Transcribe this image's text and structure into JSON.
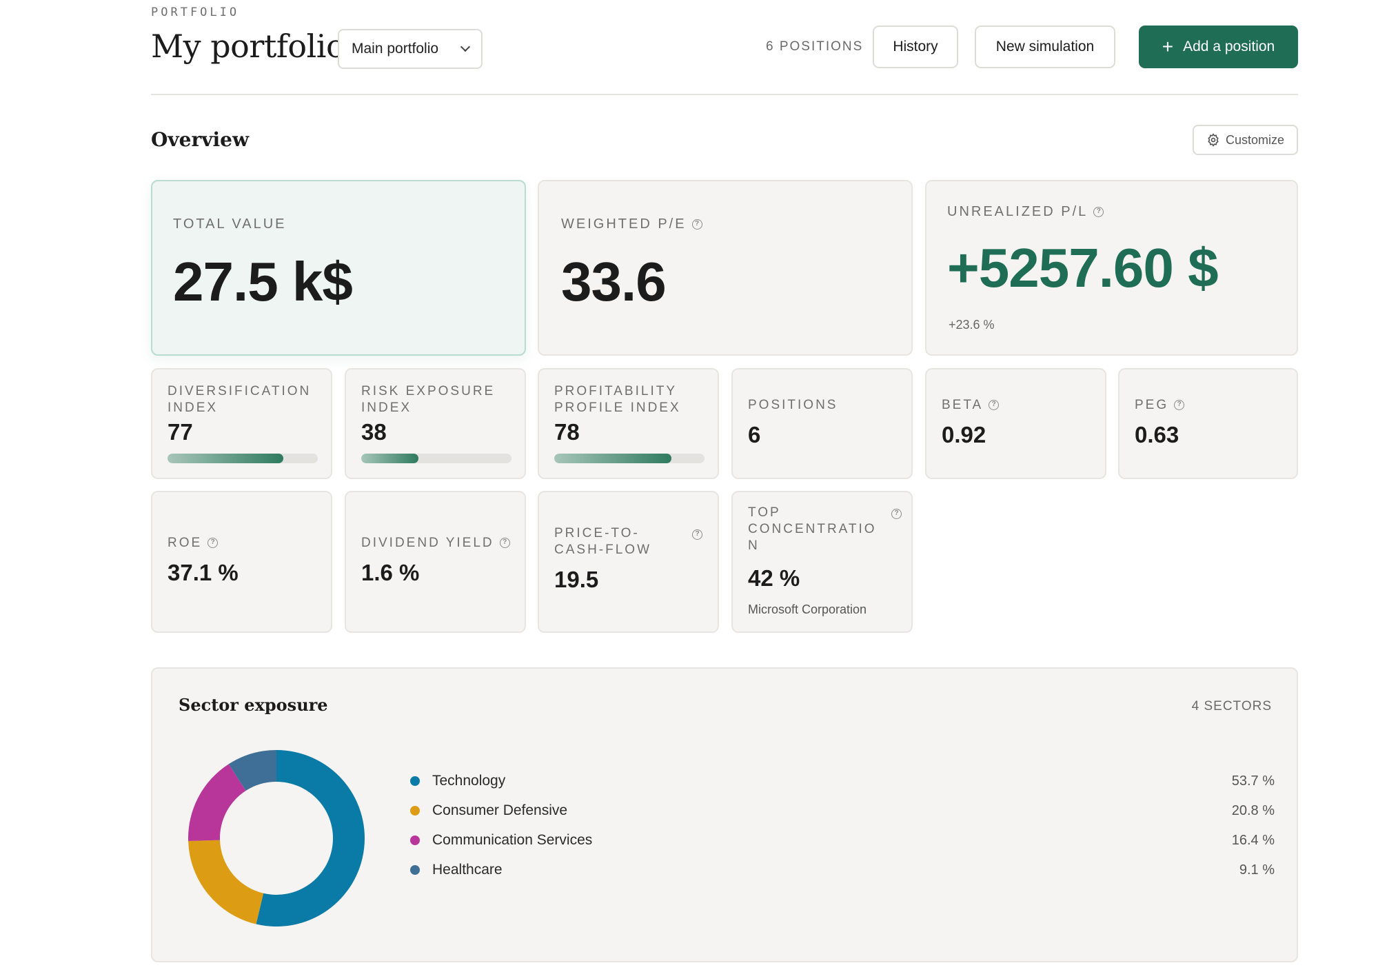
{
  "header": {
    "eyebrow": "PORTFOLIO",
    "title": "My portfolio",
    "portfolio_select": "Main portfolio",
    "positions_count": "6 POSITIONS",
    "history_label": "History",
    "new_simulation_label": "New simulation",
    "add_position_label": "Add a position"
  },
  "overview": {
    "title": "Overview",
    "customize_label": "Customize",
    "total_value": {
      "label": "TOTAL VALUE",
      "value": "27.5 k$"
    },
    "weighted_pe": {
      "label": "WEIGHTED P/E",
      "value": "33.6"
    },
    "unrealized_pl": {
      "label": "UNREALIZED P/L",
      "value": "+5257.60 $",
      "sub": "+23.6 %"
    },
    "diversification": {
      "label_line1": "DIVERSIFICATION",
      "label_line2": "INDEX",
      "value": "77",
      "level": 0.77
    },
    "risk_exposure": {
      "label_line1": "RISK EXPOSURE",
      "label_line2": "INDEX",
      "value": "38",
      "level": 0.38
    },
    "profitability": {
      "label_line1": "PROFITABILITY",
      "label_line2": "PROFILE INDEX",
      "value": "78",
      "level": 0.78
    },
    "positions": {
      "label": "POSITIONS",
      "value": "6"
    },
    "beta": {
      "label": "BETA",
      "value": "0.92"
    },
    "peg": {
      "label": "PEG",
      "value": "0.63"
    },
    "roe": {
      "label": "ROE",
      "value": "37.1 %"
    },
    "dividend_yield": {
      "label": "DIVIDEND YIELD",
      "value": "1.6 %"
    },
    "price_to_cash_flow": {
      "label_line1": "PRICE-TO-",
      "label_line2": "CASH-FLOW",
      "value": "19.5"
    },
    "top_concentration": {
      "label_line1": "TOP",
      "label_line2": "CONCENTRATIO",
      "label_line3": "N",
      "value": "42 %",
      "sub": "Microsoft Corporation"
    }
  },
  "sector_exposure": {
    "title": "Sector exposure",
    "count": "4 SECTORS",
    "sectors": [
      {
        "name": "Technology",
        "pct_label": "53.7 %",
        "value": 53.7,
        "color": "#0a7aa6"
      },
      {
        "name": "Consumer Defensive",
        "pct_label": "20.8 %",
        "value": 20.8,
        "color": "#dc9c14"
      },
      {
        "name": "Communication Services",
        "pct_label": "16.4 %",
        "value": 16.4,
        "color": "#b8369a"
      },
      {
        "name": "Healthcare",
        "pct_label": "9.1 %",
        "value": 9.1,
        "color": "#3f6f96"
      }
    ]
  }
}
